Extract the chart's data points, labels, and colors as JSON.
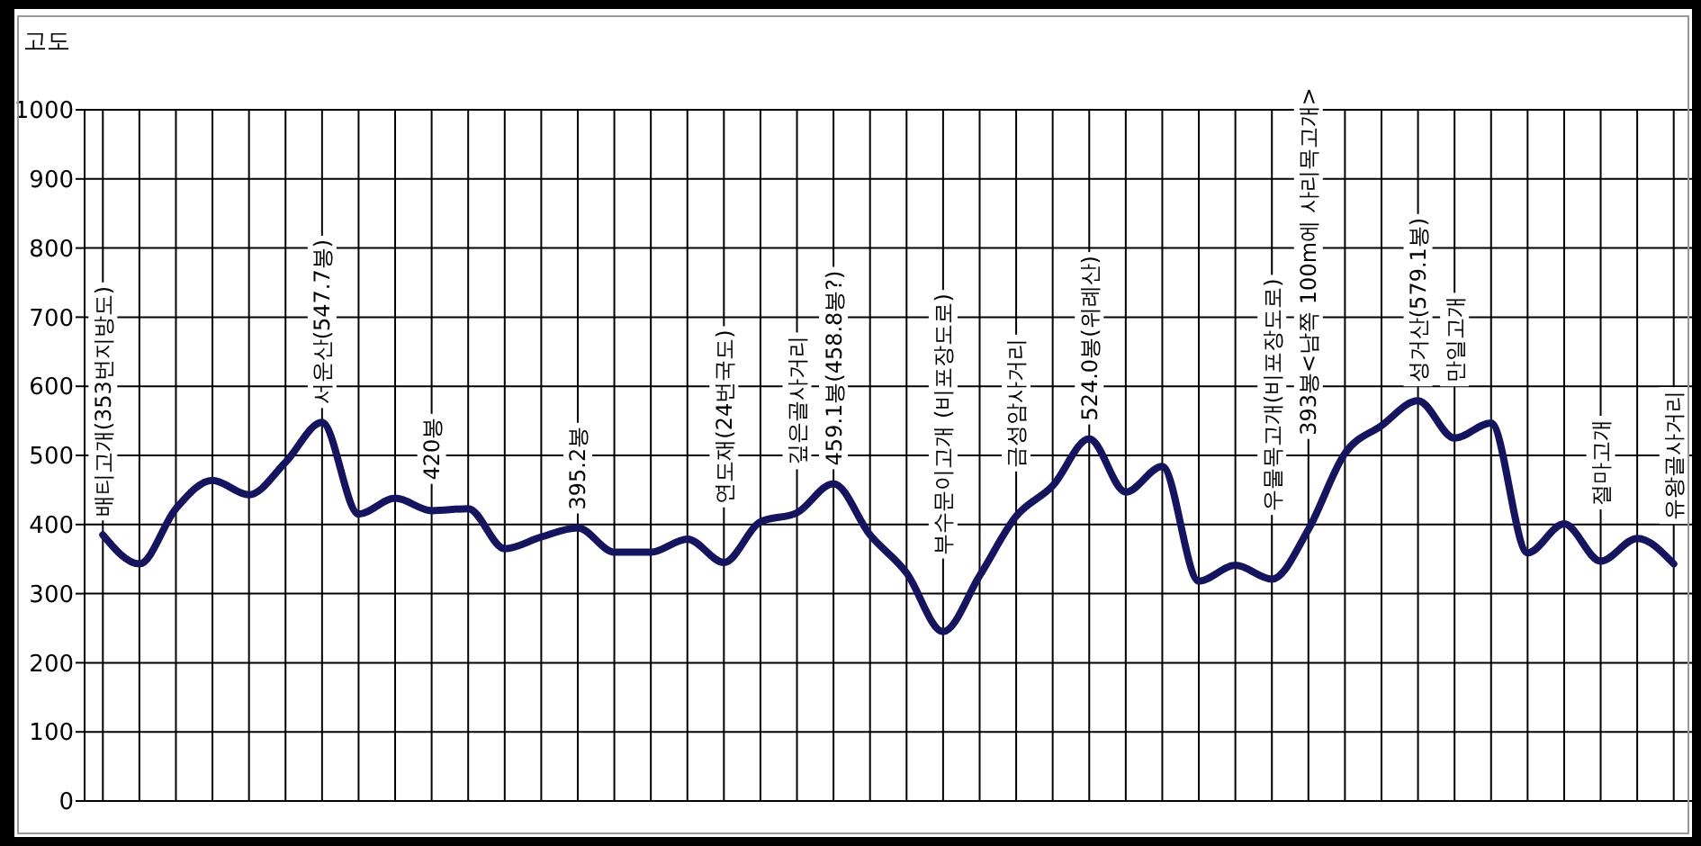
{
  "chart_data": {
    "type": "line",
    "ylabel": "고도",
    "categories": [
      "배티고개(353번지방도)",
      null,
      null,
      null,
      null,
      null,
      "서운산(547.7봉)",
      null,
      null,
      "420봉",
      null,
      null,
      null,
      "395.2봉",
      null,
      null,
      null,
      "연도재(24번국도)",
      null,
      "깊은골사거리",
      "459.1봉(458.8봉?)",
      null,
      null,
      "부수문이고개 (비포장도로)",
      null,
      "금성암사거리",
      null,
      "524.0봉(위례산)",
      null,
      null,
      null,
      null,
      "우물목고개(비포장도로)",
      "393봉<남쪽 100m에 사리목고개>",
      null,
      null,
      "성거산(579.1봉)",
      "만일고개",
      null,
      null,
      null,
      "절마고개",
      null,
      "유왕골사거리"
    ],
    "values": [
      385,
      343,
      423,
      464,
      443,
      490,
      547.7,
      415,
      438,
      420,
      423,
      365,
      382,
      395.2,
      360,
      360,
      379,
      345,
      404,
      417,
      459.1,
      385,
      330,
      245,
      326,
      412,
      456,
      524,
      447,
      484,
      318,
      341,
      321,
      393,
      503,
      543,
      579.1,
      525,
      547,
      359,
      401,
      347,
      380,
      343
    ],
    "color": "#15155f",
    "ylim": [
      0,
      1000
    ],
    "yticks": [
      0,
      100,
      200,
      300,
      400,
      500,
      600,
      700,
      800,
      900,
      1000
    ],
    "grid": true
  }
}
